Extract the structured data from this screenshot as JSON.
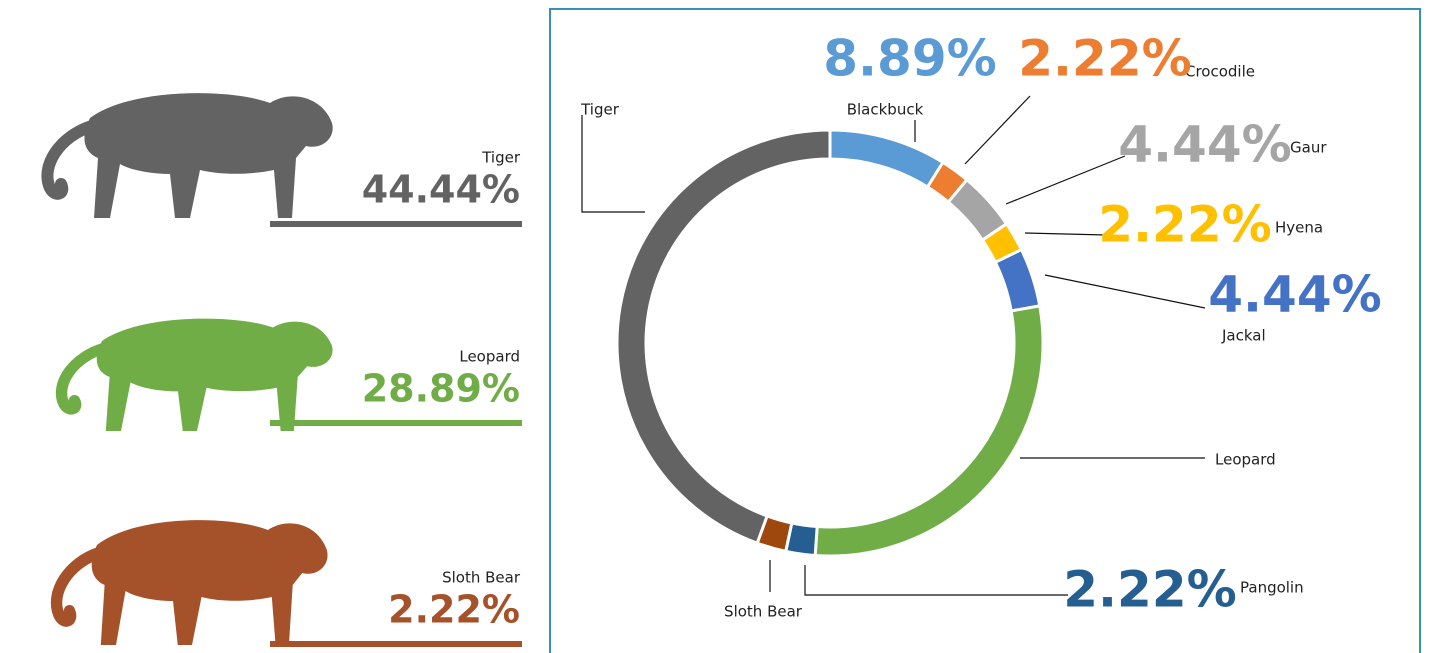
{
  "chart_data": [
    {
      "type": "pictogram",
      "categories": [
        "Tiger",
        "Leopard",
        "Sloth Bear"
      ],
      "values": [
        44.44,
        28.89,
        2.22
      ],
      "value_labels": [
        "44.44%",
        "28.89%",
        "2.22%"
      ],
      "colors": [
        "#636363",
        "#70ad47",
        "#a5522a"
      ]
    },
    {
      "type": "donut",
      "categories": [
        "Blackbuck",
        "Crocodile",
        "Gaur",
        "Hyena",
        "Jackal",
        "Leopard",
        "Pangolin",
        "Sloth Bear",
        "Tiger"
      ],
      "values": [
        8.89,
        2.22,
        4.44,
        2.22,
        4.44,
        28.89,
        2.22,
        2.22,
        44.44
      ],
      "value_labels": [
        "8.89%",
        "2.22%",
        "4.44%",
        "2.22%",
        "4.44%",
        null,
        "2.22%",
        null,
        null
      ],
      "colors": [
        "#5b9bd5",
        "#ed7d31",
        "#a5a5a5",
        "#ffc000",
        "#4472c4",
        "#70ad47",
        "#255e91",
        "#9e480e",
        "#636363"
      ]
    }
  ]
}
